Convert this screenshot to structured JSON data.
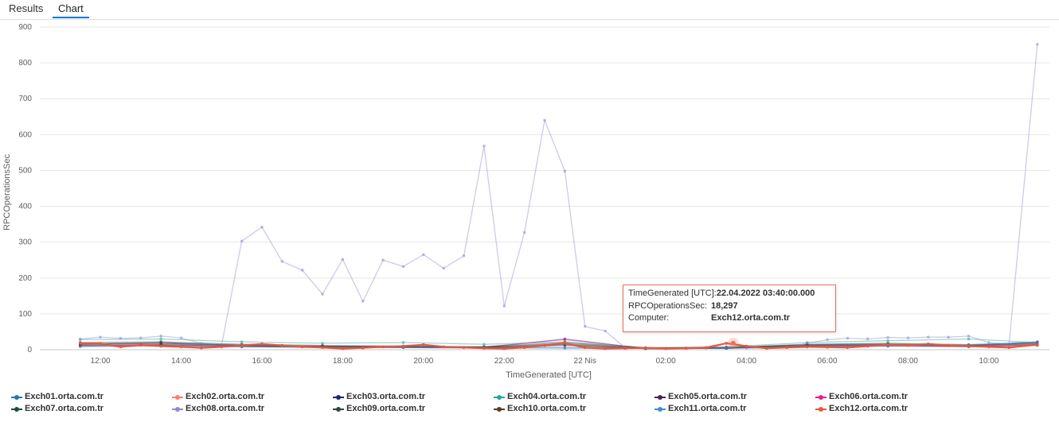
{
  "tabs": [
    {
      "label": "Results",
      "active": false
    },
    {
      "label": "Chart",
      "active": true
    }
  ],
  "chart_data": {
    "type": "line",
    "xlabel": "TimeGenerated [UTC]",
    "ylabel": "RPCOperationsSec",
    "ylim": [
      0,
      900
    ],
    "yticks": [
      0,
      100,
      200,
      300,
      400,
      500,
      600,
      700,
      800,
      900
    ],
    "xticks": [
      "12:00",
      "14:00",
      "16:00",
      "18:00",
      "20:00",
      "22:00",
      "22 Nis",
      "02:00",
      "04:00",
      "06:00",
      "08:00",
      "10:00"
    ],
    "xlim_hours": [
      10.5,
      35.5
    ],
    "grid": true,
    "legend_position": "bottom",
    "series": [
      {
        "name": "Exch01.orta.com.tr",
        "color": "#1f77b4",
        "x": [
          11.5,
          13.5,
          15.5,
          17.5,
          19.5,
          21.5,
          23.5,
          25.5,
          27.5,
          29.5,
          31.5,
          33.5,
          35.2
        ],
        "y": [
          12,
          14,
          10,
          9,
          8,
          7,
          6,
          5,
          4,
          10,
          12,
          10,
          18
        ]
      },
      {
        "name": "Exch02.orta.com.tr",
        "color": "#fa8072",
        "x": [
          11.5,
          13.5,
          15.5,
          17.5,
          19.5,
          21.5,
          23.5,
          25.5,
          27.5,
          29.5,
          31.5,
          33.5,
          35.2
        ],
        "y": [
          18,
          16,
          14,
          10,
          9,
          6,
          18,
          4,
          8,
          12,
          14,
          9,
          15
        ]
      },
      {
        "name": "Exch03.orta.com.tr",
        "color": "#1a237e",
        "x": [
          11.5,
          13.5,
          15.5,
          17.5,
          19.5,
          21.5,
          23.5,
          25.5,
          27.5,
          29.5,
          31.5,
          33.5,
          35.2
        ],
        "y": [
          15,
          20,
          12,
          8,
          7,
          6,
          30,
          3,
          5,
          14,
          16,
          12,
          22
        ]
      },
      {
        "name": "Exch04.orta.com.tr",
        "color": "#26a69a",
        "x": [
          11.5,
          13.5,
          15.5,
          17.5,
          19.5,
          21.5,
          23.5,
          25.5,
          27.5,
          29.5,
          31.5,
          33.5,
          35.2
        ],
        "y": [
          28,
          30,
          22,
          18,
          20,
          15,
          22,
          6,
          8,
          20,
          25,
          30,
          20
        ]
      },
      {
        "name": "Exch05.orta.com.tr",
        "color": "#4a235a",
        "x": [
          11.5,
          13.5,
          15.5,
          17.5,
          19.5,
          21.5,
          23.5,
          25.5,
          27.5,
          29.5,
          31.5,
          33.5,
          35.2
        ],
        "y": [
          10,
          12,
          8,
          7,
          6,
          5,
          12,
          3,
          4,
          8,
          10,
          8,
          12
        ]
      },
      {
        "name": "Exch06.orta.com.tr",
        "color": "#e91e8c",
        "x": [
          11.5,
          13.5,
          15.5,
          17.5,
          19.5,
          21.5,
          23.5,
          25.5,
          27.5,
          29.5,
          31.5,
          33.5,
          35.2
        ],
        "y": [
          14,
          18,
          12,
          10,
          9,
          8,
          28,
          4,
          6,
          12,
          14,
          12,
          16
        ]
      },
      {
        "name": "Exch07.orta.com.tr",
        "color": "#1b4d3e",
        "x": [
          11.5,
          13.5,
          15.5,
          17.5,
          19.5,
          21.5,
          23.5,
          25.5,
          27.5,
          29.5,
          31.5,
          33.5,
          35.2
        ],
        "y": [
          20,
          22,
          15,
          12,
          10,
          8,
          20,
          5,
          6,
          15,
          18,
          14,
          20
        ]
      },
      {
        "name": "Exch08.orta.com.tr",
        "color": "#8c8ccf",
        "x": [
          11.5,
          12,
          12.5,
          13,
          13.5,
          14,
          14.5,
          15,
          15.5,
          16,
          16.5,
          17,
          17.5,
          18,
          18.5,
          19,
          19.5,
          20,
          20.5,
          21,
          21.5,
          22,
          22.5,
          23,
          23.5,
          24,
          24.5,
          25,
          25.5,
          26,
          26.5,
          27,
          27.5,
          28,
          28.5,
          29,
          29.5,
          30,
          30.5,
          31,
          31.5,
          32,
          32.5,
          33,
          33.5,
          34,
          34.5,
          35.2
        ],
        "y": [
          30,
          35,
          32,
          33,
          38,
          33,
          18,
          12,
          303,
          342,
          246,
          222,
          155,
          252,
          135,
          250,
          232,
          265,
          227,
          262,
          568,
          122,
          327,
          640,
          498,
          65,
          52,
          5,
          4,
          3,
          5,
          4,
          6,
          5,
          4,
          6,
          18,
          28,
          32,
          30,
          34,
          33,
          35,
          35,
          38,
          20,
          16,
          852
        ]
      },
      {
        "name": "Exch09.orta.com.tr",
        "color": "#2e4a3a",
        "x": [
          11.5,
          13.5,
          15.5,
          17.5,
          19.5,
          21.5,
          23.5,
          25.5,
          27.5,
          29.5,
          31.5,
          33.5,
          35.2
        ],
        "y": [
          16,
          18,
          12,
          9,
          8,
          7,
          16,
          4,
          5,
          12,
          14,
          12,
          18
        ]
      },
      {
        "name": "Exch10.orta.com.tr",
        "color": "#5d3a1a",
        "x": [
          11.5,
          13.5,
          15.5,
          17.5,
          19.5,
          21.5,
          23.5,
          25.5,
          27.5,
          29.5,
          31.5,
          33.5,
          35.2
        ],
        "y": [
          12,
          14,
          10,
          8,
          7,
          6,
          14,
          3,
          4,
          10,
          12,
          10,
          14
        ]
      },
      {
        "name": "Exch11.orta.com.tr",
        "color": "#3d8fd6",
        "x": [
          11.5,
          13.5,
          15.5,
          17.5,
          19.5,
          21.5,
          23.5,
          25.5,
          27.5,
          29.5,
          31.5,
          33.5,
          35.2
        ],
        "y": [
          8,
          10,
          8,
          6,
          6,
          5,
          4,
          3,
          4,
          8,
          10,
          14,
          20
        ]
      },
      {
        "name": "Exch12.orta.com.tr",
        "color": "#e8563f",
        "highlight": true,
        "x": [
          11.5,
          12,
          12.5,
          13,
          13.5,
          14,
          14.5,
          15,
          15.5,
          16,
          16.5,
          17,
          17.5,
          18,
          18.5,
          19,
          19.5,
          20,
          20.5,
          21,
          21.5,
          22,
          22.5,
          23,
          23.5,
          24,
          24.5,
          25,
          25.5,
          26,
          26.5,
          27,
          27.5,
          28,
          28.5,
          29,
          29.5,
          30,
          30.5,
          31,
          31.5,
          32,
          32.5,
          33,
          33.5,
          34,
          34.5,
          35.2
        ],
        "y": [
          18,
          17,
          8,
          13,
          10,
          8,
          5,
          8,
          12,
          16,
          12,
          8,
          6,
          3,
          5,
          8,
          10,
          14,
          8,
          6,
          4,
          3,
          6,
          12,
          18,
          6,
          3,
          4,
          5,
          3,
          4,
          6,
          18,
          10,
          4,
          6,
          8,
          7,
          6,
          10,
          14,
          12,
          16,
          12,
          10,
          8,
          6,
          14
        ]
      }
    ]
  },
  "tooltip": {
    "rows": [
      {
        "key": "TimeGenerated [UTC]:",
        "value": "22.04.2022 03:40:00.000"
      },
      {
        "key": "RPCOperationsSec:",
        "value": "18,297"
      },
      {
        "key": "Computer:",
        "value": "Exch12.orta.com.tr"
      }
    ],
    "x_hours": 27.67,
    "y": 18.297,
    "border_color": "#e8735a"
  }
}
